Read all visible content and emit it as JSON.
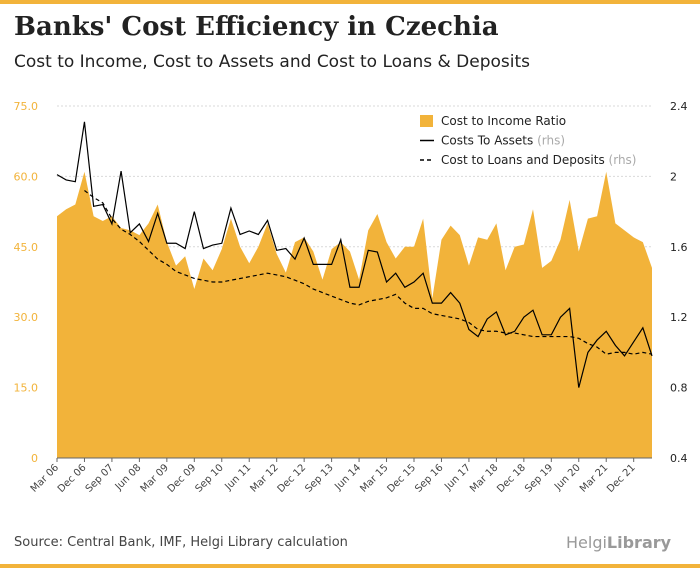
{
  "header": {
    "title": "Banks' Cost Efficiency in Czechia",
    "subtitle": "Cost to Income, Cost to Assets and Cost to Loans & Deposits"
  },
  "footer": {
    "source": "Source: Central Bank, IMF, Helgi Library calculation",
    "logo_text": "Helgi",
    "logo_text_bold": "Library"
  },
  "colors": {
    "area": "#f2b33a",
    "line": "#000000",
    "accent_bar": "#f2b33a",
    "left_tick": "#f2b33a",
    "grid": "#d9d9d9"
  },
  "chart_data": {
    "type": "area",
    "xlabel": "",
    "ylabel_left": "",
    "ylabel_right": "",
    "y_left_ticks": [
      "0",
      "15.0",
      "30.0",
      "45.0",
      "60.0",
      "75.0"
    ],
    "y_left_range": [
      0,
      75
    ],
    "y_right_ticks": [
      "0.4",
      "0.8",
      "1.2",
      "1.6",
      "2",
      "2.4"
    ],
    "y_right_range": [
      0.4,
      2.4
    ],
    "x_tick_labels": [
      "Mar 06",
      "Dec 06",
      "Sep 07",
      "Jun 08",
      "Mar 09",
      "Dec 09",
      "Sep 10",
      "Jun 11",
      "Mar 12",
      "Dec 12",
      "Sep 13",
      "Jun 14",
      "Mar 15",
      "Dec 15",
      "Sep 16",
      "Jun 17",
      "Mar 18",
      "Dec 18",
      "Sep 19",
      "Jun 20",
      "Mar 21",
      "Dec 21"
    ],
    "grid": true,
    "legend_position": "top-right",
    "legend": [
      {
        "label": "Cost to Income Ratio",
        "suffix": "",
        "style": "area"
      },
      {
        "label": "Costs To Assets",
        "suffix": "(rhs)",
        "style": "solid"
      },
      {
        "label": "Cost to Loans and Deposits",
        "suffix": "(rhs)",
        "style": "dashed"
      }
    ],
    "series": [
      {
        "name": "Cost to Income Ratio",
        "axis": "left",
        "values": [
          51.5,
          53,
          54,
          61,
          51.5,
          50.5,
          51.5,
          49,
          48.5,
          47.5,
          50,
          54,
          46,
          41,
          43,
          36,
          42.5,
          40,
          44.5,
          51,
          45,
          41.5,
          45,
          50,
          43.5,
          39.5,
          46,
          47,
          44,
          38,
          44.5,
          46,
          44,
          38,
          48.5,
          52,
          46,
          42.5,
          45,
          45,
          51,
          34,
          46.5,
          49.5,
          47.5,
          41,
          47,
          46.5,
          50,
          40,
          45,
          45.5,
          53,
          40.5,
          42,
          46.5,
          55,
          44,
          51,
          51.5,
          61,
          50,
          48.5,
          47,
          46,
          40.5
        ]
      },
      {
        "name": "Costs To Assets",
        "axis": "right",
        "values": [
          2.01,
          1.98,
          1.97,
          2.31,
          1.83,
          1.84,
          1.73,
          2.03,
          1.68,
          1.73,
          1.63,
          1.79,
          1.62,
          1.62,
          1.59,
          1.8,
          1.59,
          1.61,
          1.62,
          1.82,
          1.67,
          1.69,
          1.67,
          1.75,
          1.58,
          1.59,
          1.53,
          1.65,
          1.5,
          1.5,
          1.5,
          1.64,
          1.37,
          1.37,
          1.58,
          1.57,
          1.4,
          1.45,
          1.37,
          1.4,
          1.45,
          1.28,
          1.28,
          1.34,
          1.28,
          1.13,
          1.09,
          1.19,
          1.23,
          1.1,
          1.12,
          1.2,
          1.24,
          1.1,
          1.1,
          1.2,
          1.25,
          0.8,
          1.0,
          1.07,
          1.12,
          1.04,
          0.98,
          1.06,
          1.14,
          0.98
        ]
      },
      {
        "name": "Cost to Loans and Deposits",
        "axis": "right",
        "values": [
          null,
          null,
          null,
          1.92,
          1.88,
          1.85,
          1.76,
          1.7,
          1.67,
          1.63,
          1.58,
          1.53,
          1.5,
          1.46,
          1.44,
          1.42,
          1.41,
          1.4,
          1.4,
          1.41,
          1.42,
          1.43,
          1.44,
          1.45,
          1.44,
          1.43,
          1.41,
          1.39,
          1.36,
          1.34,
          1.32,
          1.3,
          1.28,
          1.27,
          1.29,
          1.3,
          1.31,
          1.33,
          1.28,
          1.25,
          1.25,
          1.22,
          1.21,
          1.2,
          1.19,
          1.17,
          1.13,
          1.12,
          1.12,
          1.11,
          1.11,
          1.1,
          1.09,
          1.09,
          1.09,
          1.09,
          1.09,
          1.08,
          1.05,
          1.03,
          0.99,
          1.0,
          1.0,
          0.99,
          1.0,
          0.99
        ]
      }
    ]
  }
}
